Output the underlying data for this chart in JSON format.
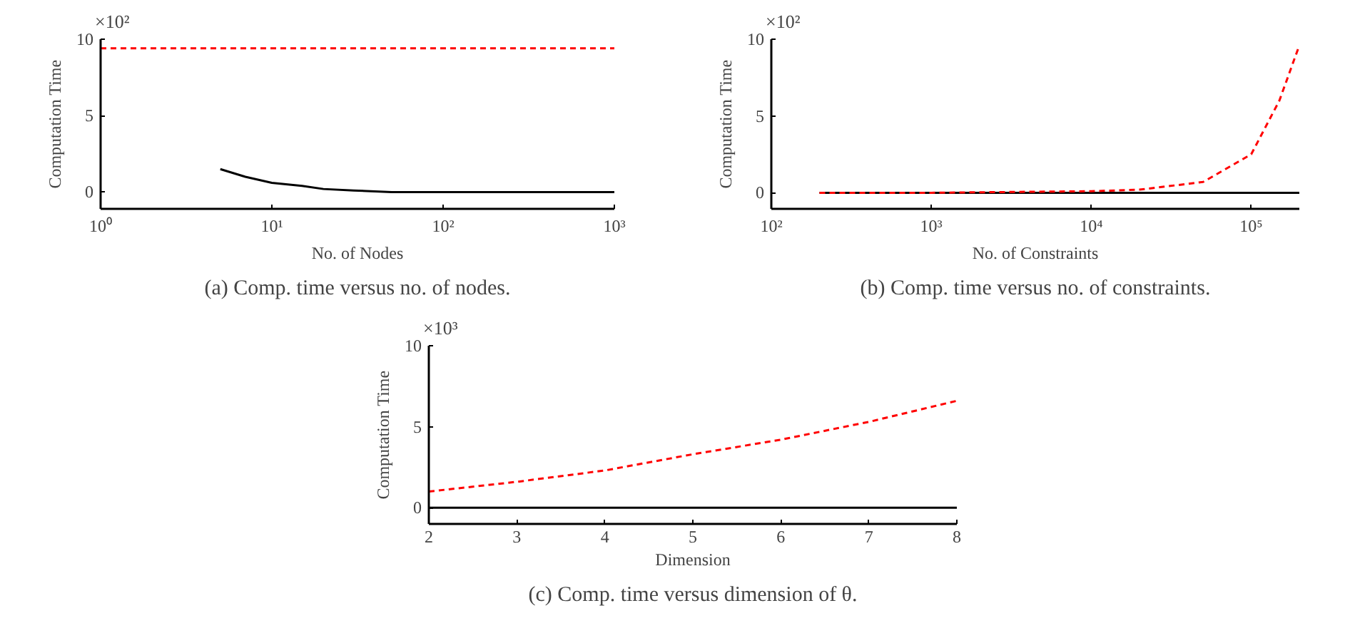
{
  "chart_data": [
    {
      "type": "line",
      "title": "(a) Comp. time versus no. of nodes.",
      "xlabel": "No. of Nodes",
      "ylabel": "Computation Time",
      "annotations": [
        "×10²"
      ],
      "log": "x",
      "xlim": [
        1,
        1000
      ],
      "ylim": [
        -1.1,
        10
      ],
      "xticks": [
        {
          "value": 1,
          "label": "10⁰"
        },
        {
          "value": 10,
          "label": "10¹"
        },
        {
          "value": 100,
          "label": "10²"
        },
        {
          "value": 1000,
          "label": "10³"
        }
      ],
      "yticks": [
        0,
        5,
        10
      ],
      "grid": false,
      "series": [
        {
          "color": "#ff0000",
          "line_style": "dashed",
          "x": [
            1,
            1000
          ],
          "values": [
            9.4,
            9.4
          ]
        },
        {
          "color": "#000000",
          "line_style": "solid",
          "x": [
            5,
            7,
            10,
            15,
            20,
            30,
            50,
            100,
            1000
          ],
          "values": [
            1.5,
            1.0,
            0.6,
            0.4,
            0.2,
            0.1,
            0,
            0,
            0
          ]
        }
      ]
    },
    {
      "type": "line",
      "title": "(b) Comp. time versus no. of constraints.",
      "xlabel": "No. of Constraints",
      "ylabel": "Computation Time",
      "annotations": [
        "×10²"
      ],
      "log": "x",
      "xlim": [
        100,
        200000
      ],
      "ylim": [
        -1.05,
        10
      ],
      "xticks": [
        {
          "value": 100,
          "label": "10²"
        },
        {
          "value": 1000,
          "label": "10³"
        },
        {
          "value": 10000,
          "label": "10⁴"
        },
        {
          "value": 100000,
          "label": "10⁵"
        }
      ],
      "yticks": [
        0,
        5,
        10
      ],
      "grid": false,
      "series": [
        {
          "color": "#000000",
          "line_style": "solid",
          "x": [
            200,
            200000
          ],
          "values": [
            0,
            0
          ]
        },
        {
          "color": "#ff0000",
          "line_style": "dashed",
          "x": [
            200,
            1000,
            10000,
            20000,
            50000,
            100000,
            150000,
            200000
          ],
          "values": [
            0,
            0,
            0.1,
            0.2,
            0.7,
            2.5,
            6.0,
            9.6
          ]
        }
      ]
    },
    {
      "type": "line",
      "title": "(c) Comp. time versus dimension of θ.",
      "xlabel": "Dimension",
      "ylabel": "Computation Time",
      "annotations": [
        "×10³"
      ],
      "xlim": [
        2,
        8
      ],
      "ylim": [
        -1.0,
        10
      ],
      "xticks": [
        2,
        3,
        4,
        5,
        6,
        7,
        8
      ],
      "yticks": [
        0,
        5,
        10
      ],
      "grid": false,
      "series": [
        {
          "color": "#000000",
          "line_style": "solid",
          "x": [
            2,
            8
          ],
          "values": [
            0,
            0
          ]
        },
        {
          "color": "#ff0000",
          "line_style": "dashed",
          "x": [
            2,
            3,
            4,
            5,
            6,
            7,
            8
          ],
          "values": [
            1.0,
            1.6,
            2.3,
            3.3,
            4.2,
            5.3,
            6.6
          ]
        }
      ]
    }
  ]
}
